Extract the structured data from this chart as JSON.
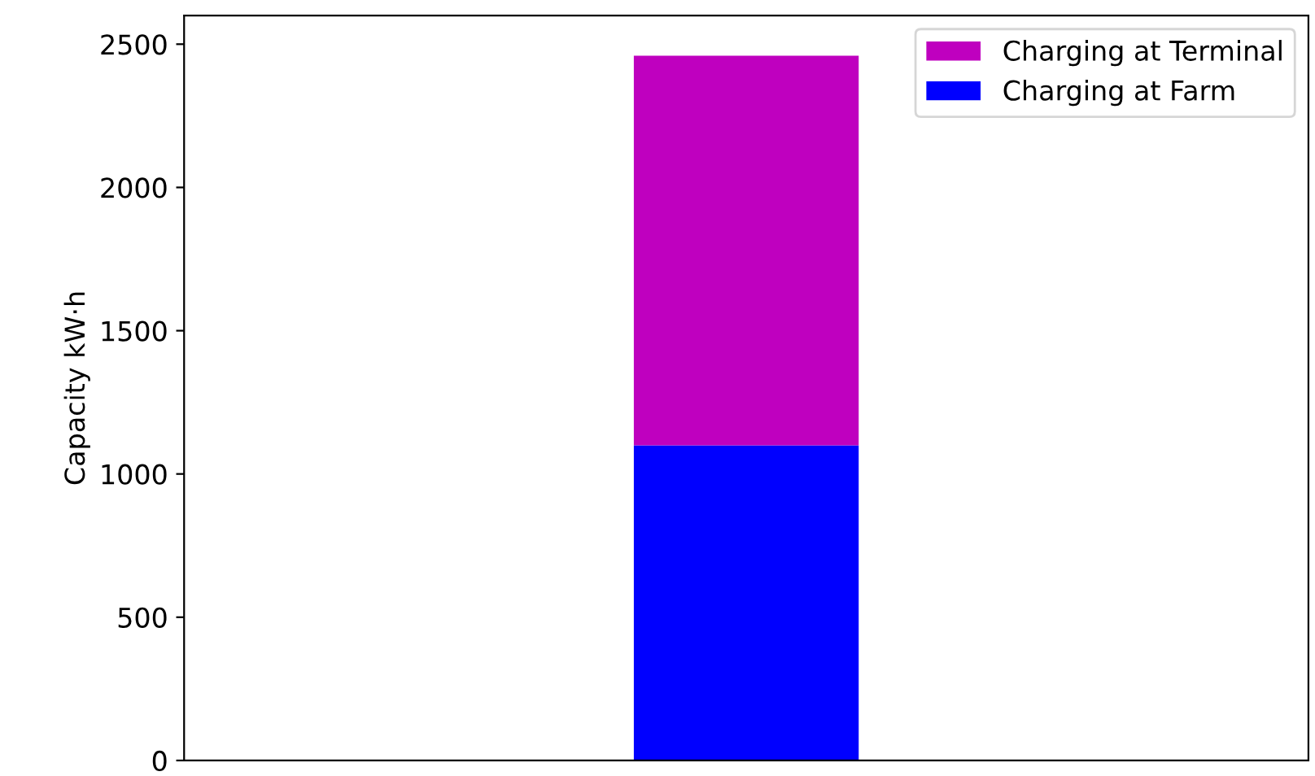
{
  "chart_data": {
    "type": "bar",
    "stacked": true,
    "ylabel": "Capacity kW·h",
    "categories": [
      null
    ],
    "series": [
      {
        "name": "Charging at Farm",
        "color": "#0000ff",
        "values": [
          1100
        ]
      },
      {
        "name": "Charging at Terminal",
        "color": "#bf00bf",
        "values": [
          1360
        ]
      }
    ],
    "ylim": [
      0,
      2600
    ],
    "yticks": [
      0,
      500,
      1000,
      1500,
      2000,
      2500
    ],
    "legend": "top right",
    "grid": false
  }
}
